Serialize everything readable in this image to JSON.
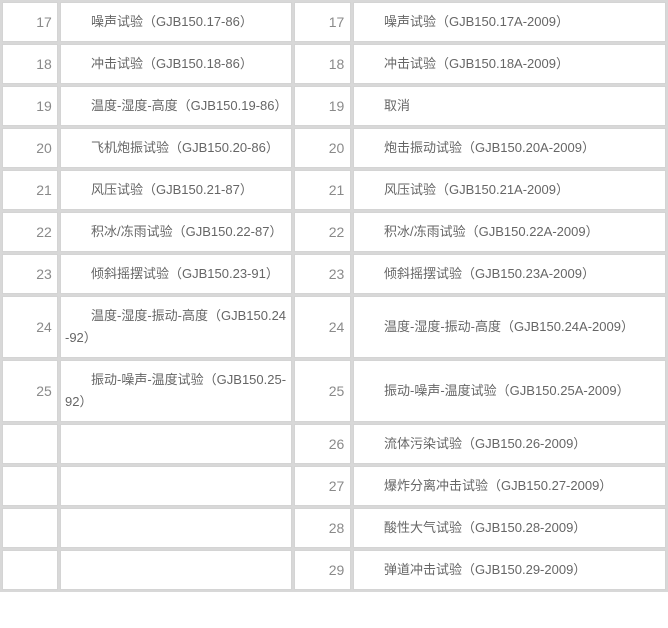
{
  "colors": {
    "grid": "#d8d8d8",
    "cell_border": "#d4d4d4",
    "cell_background": "#ffffff",
    "test_name_text": "#666666",
    "row_number_text": "#8a8a8a"
  },
  "table": {
    "rows": [
      {
        "old_no": "17",
        "old_name": "噪声试验（GJB150.17-86）",
        "new_no": "17",
        "new_name": "噪声试验（GJB150.17A-2009）"
      },
      {
        "old_no": "18",
        "old_name": "冲击试验（GJB150.18-86）",
        "new_no": "18",
        "new_name": "冲击试验（GJB150.18A-2009）"
      },
      {
        "old_no": "19",
        "old_name": "温度-湿度-高度（GJB150.19-86）",
        "new_no": "19",
        "new_name": "取消"
      },
      {
        "old_no": "20",
        "old_name": "飞机炮振试验（GJB150.20-86）",
        "new_no": "20",
        "new_name": "炮击振动试验（GJB150.20A-2009）"
      },
      {
        "old_no": "21",
        "old_name": "风压试验（GJB150.21-87）",
        "new_no": "21",
        "new_name": "风压试验（GJB150.21A-2009）"
      },
      {
        "old_no": "22",
        "old_name": "积冰/冻雨试验（GJB150.22-87）",
        "new_no": "22",
        "new_name": "积冰/冻雨试验（GJB150.22A-2009）"
      },
      {
        "old_no": "23",
        "old_name": "倾斜摇摆试验（GJB150.23-91）",
        "new_no": "23",
        "new_name": "倾斜摇摆试验（GJB150.23A-2009）"
      },
      {
        "old_no": "24",
        "old_name": "温度-湿度-振动-高度（GJB150.24-92）",
        "new_no": "24",
        "new_name": "温度-湿度-振动-高度（GJB150.24A-2009）"
      },
      {
        "old_no": "25",
        "old_name": "振动-噪声-温度试验（GJB150.25-92）",
        "new_no": "25",
        "new_name": "振动-噪声-温度试验（GJB150.25A-2009）"
      },
      {
        "old_no": "",
        "old_name": "",
        "new_no": "26",
        "new_name": "流体污染试验（GJB150.26-2009）"
      },
      {
        "old_no": "",
        "old_name": "",
        "new_no": "27",
        "new_name": "爆炸分离冲击试验（GJB150.27-2009）"
      },
      {
        "old_no": "",
        "old_name": "",
        "new_no": "28",
        "new_name": "酸性大气试验（GJB150.28-2009）"
      },
      {
        "old_no": "",
        "old_name": "",
        "new_no": "29",
        "new_name": "弹道冲击试验（GJB150.29-2009）"
      }
    ]
  }
}
